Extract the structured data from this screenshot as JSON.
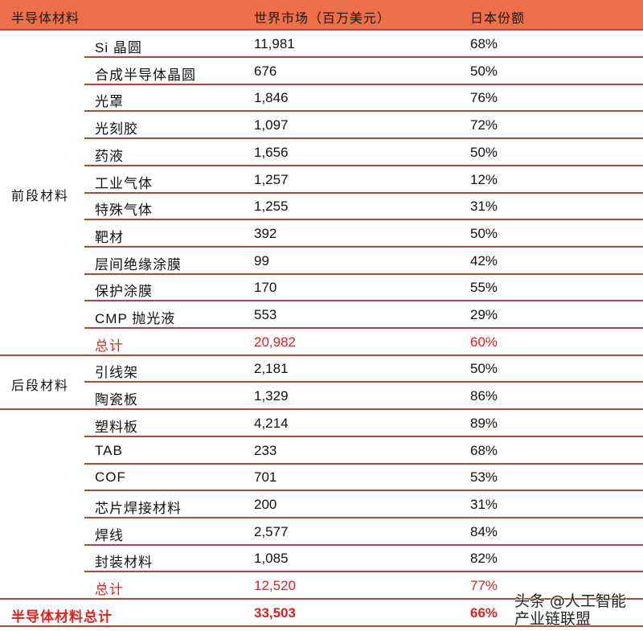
{
  "header": {
    "col1": "半导体材料",
    "col2": "世界市场（百万美元）",
    "col3": "日本份额"
  },
  "groups": [
    {
      "label": "前段材料"
    },
    {
      "label": "后段材料"
    },
    {
      "label": ""
    }
  ],
  "rows": [
    {
      "name": "Si 晶圆",
      "value": "11,981",
      "share": "68%"
    },
    {
      "name": "合成半导体晶圆",
      "value": "676",
      "share": "50%"
    },
    {
      "name": "光罩",
      "value": "1,846",
      "share": "76%"
    },
    {
      "name": "光刻胶",
      "value": "1,097",
      "share": "72%"
    },
    {
      "name": "药液",
      "value": "1,656",
      "share": "50%"
    },
    {
      "name": "工业气体",
      "value": "1,257",
      "share": "12%"
    },
    {
      "name": "特殊气体",
      "value": "1,255",
      "share": "31%"
    },
    {
      "name": "靶材",
      "value": "392",
      "share": "50%"
    },
    {
      "name": "层间绝缘涂膜",
      "value": "99",
      "share": "42%"
    },
    {
      "name": "保护涂膜",
      "value": "170",
      "share": "55%"
    },
    {
      "name": "CMP 抛光液",
      "value": "553",
      "share": "29%"
    },
    {
      "name": "总计",
      "value": "20,982",
      "share": "60%"
    },
    {
      "name": "引线架",
      "value": "2,181",
      "share": "50%"
    },
    {
      "name": "陶瓷板",
      "value": "1,329",
      "share": "86%"
    },
    {
      "name": "塑料板",
      "value": "4,214",
      "share": "89%"
    },
    {
      "name": "TAB",
      "value": "233",
      "share": "68%"
    },
    {
      "name": "COF",
      "value": "701",
      "share": "53%"
    },
    {
      "name": "芯片焊接材料",
      "value": "200",
      "share": "31%"
    },
    {
      "name": "焊线",
      "value": "2,577",
      "share": "84%"
    },
    {
      "name": "封装材料",
      "value": "1,085",
      "share": "82%"
    },
    {
      "name": "总计",
      "value": "12,520",
      "share": "77%"
    }
  ],
  "grand_total": {
    "name": "半导体材料总计",
    "value": "33,503",
    "share": "66%"
  },
  "watermark": "头条 @人工智能产业链联盟",
  "colors": {
    "header_bg": "#ED7049",
    "rule": "#A94A37",
    "total_text": "#E02020"
  }
}
